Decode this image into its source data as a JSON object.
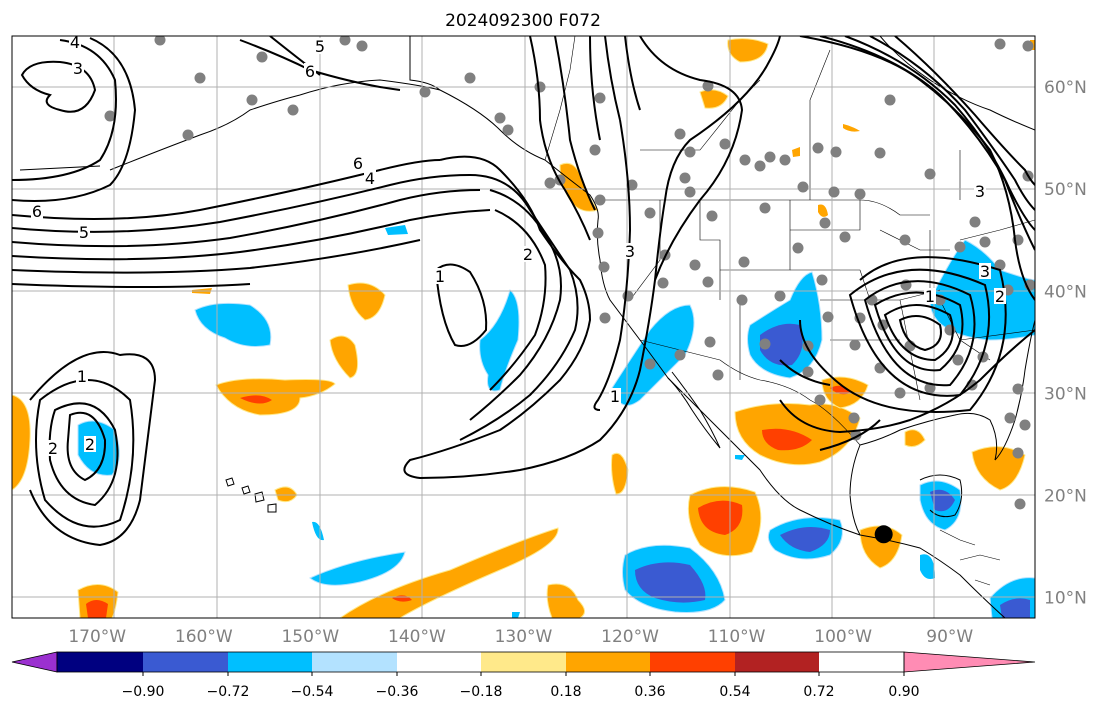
{
  "title": "2024092300 F072",
  "map": {
    "projection": "PlateCarree",
    "lon_range": [
      -178,
      -82
    ],
    "lat_range": [
      8,
      65
    ],
    "lon_labels": [
      "170°W",
      "160°W",
      "150°W",
      "140°W",
      "130°W",
      "120°W",
      "110°W",
      "100°W",
      "90°W"
    ],
    "lat_labels": [
      "60°N",
      "50°N",
      "40°N",
      "30°N",
      "20°N",
      "10°N"
    ],
    "contour_labels": [
      "4",
      "3",
      "5",
      "6",
      "6",
      "6",
      "5",
      "4",
      "2",
      "1",
      "3",
      "2",
      "2",
      "1",
      "1",
      "2",
      "3",
      "3",
      "1"
    ],
    "marker": {
      "lon": -96.2,
      "lat": 16.2,
      "color": "#000000"
    }
  },
  "colorbar": {
    "tick_labels": [
      "−0.90",
      "−0.72",
      "−0.54",
      "−0.36",
      "−0.18",
      "0.18",
      "0.36",
      "0.54",
      "0.72",
      "0.90"
    ],
    "colors": [
      "#9b30d0",
      "#000080",
      "#3a5ad2",
      "#00bfff",
      "#b3e2ff",
      "#ffffff",
      "#ffe98a",
      "#ffa500",
      "#ff4000",
      "#b22222",
      "#ff8cb4"
    ],
    "extend": "both"
  },
  "fill_colors": {
    "blue_light": "#b3e2ff",
    "blue": "#00bfff",
    "blue_dark": "#3a5ad2",
    "yellow": "#ffe98a",
    "orange": "#ffa500",
    "red": "#ff4000"
  }
}
